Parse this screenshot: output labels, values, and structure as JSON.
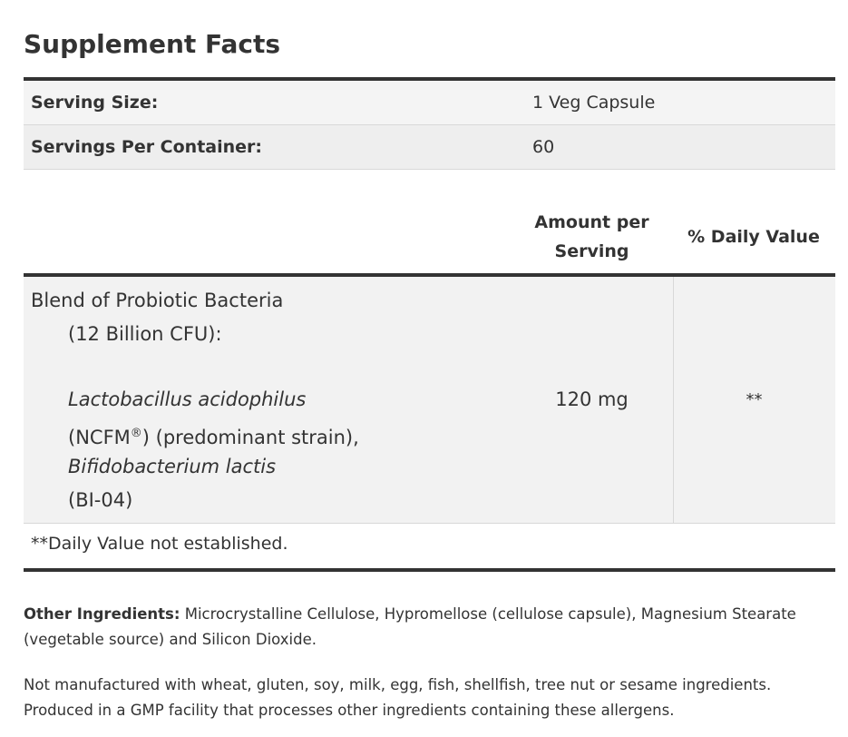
{
  "title": "Supplement Facts",
  "serving": [
    {
      "label": "Serving Size:",
      "value": "1 Veg Capsule"
    },
    {
      "label": "Servings Per Container:",
      "value": "60"
    }
  ],
  "header": {
    "amount_line1": "Amount per",
    "amount_line2": "Serving",
    "daily_value": "% Daily Value"
  },
  "ingredient": {
    "name": "Blend of Probiotic Bacteria",
    "cfu": "(12 Billion CFU):",
    "strain1_italic": "Lactobacillus acidophilus",
    "strain1_detail_a": "(NCFM",
    "strain1_reg": "®",
    "strain1_detail_b": ") (predominant strain),",
    "strain2_italic": "Bifidobacterium lactis",
    "strain2_detail": "(BI-04)",
    "amount": "120 mg",
    "daily_value": "**"
  },
  "footnote": "**Daily Value not established.",
  "other_ingredients": {
    "label": "Other Ingredients:",
    "text": " Microcrystalline Cellulose, Hypromellose (cellulose capsule), Magnesium Stearate (vegetable source) and Silicon Dioxide."
  },
  "allergen_note": "Not manufactured with wheat, gluten, soy, milk, egg, fish, shellfish, tree nut or sesame ingredients. Produced in a GMP facility that processes other ingredients containing these allergens."
}
